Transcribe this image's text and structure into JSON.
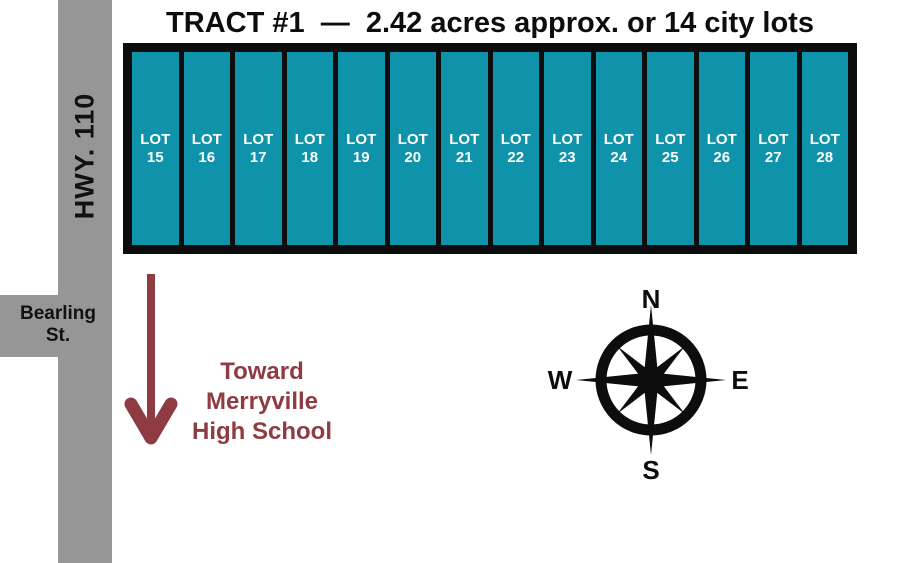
{
  "title": "TRACT #1  —  2.42 acres approx. or 14 city lots",
  "roads": {
    "highway": {
      "label": "HWY. 110"
    },
    "street": {
      "line1": "Bearling",
      "line2": "St."
    }
  },
  "tract": {
    "lots": [
      {
        "prefix": "LOT",
        "number": "15"
      },
      {
        "prefix": "LOT",
        "number": "16"
      },
      {
        "prefix": "LOT",
        "number": "17"
      },
      {
        "prefix": "LOT",
        "number": "18"
      },
      {
        "prefix": "LOT",
        "number": "19"
      },
      {
        "prefix": "LOT",
        "number": "20"
      },
      {
        "prefix": "LOT",
        "number": "21"
      },
      {
        "prefix": "LOT",
        "number": "22"
      },
      {
        "prefix": "LOT",
        "number": "23"
      },
      {
        "prefix": "LOT",
        "number": "24"
      },
      {
        "prefix": "LOT",
        "number": "25"
      },
      {
        "prefix": "LOT",
        "number": "26"
      },
      {
        "prefix": "LOT",
        "number": "27"
      },
      {
        "prefix": "LOT",
        "number": "28"
      }
    ]
  },
  "annotation": {
    "direction": "down",
    "line1": "Toward",
    "line2": "Merryville",
    "line3": "High School"
  },
  "compass": {
    "north": "N",
    "east": "E",
    "south": "S",
    "west": "W"
  },
  "colors": {
    "lot_teal": "#0F93AB",
    "road_gray": "#969696",
    "ink_black": "#0D0D0D",
    "arrow_maroon": "#8E3B41",
    "lot_text": "#FFFFFF"
  }
}
